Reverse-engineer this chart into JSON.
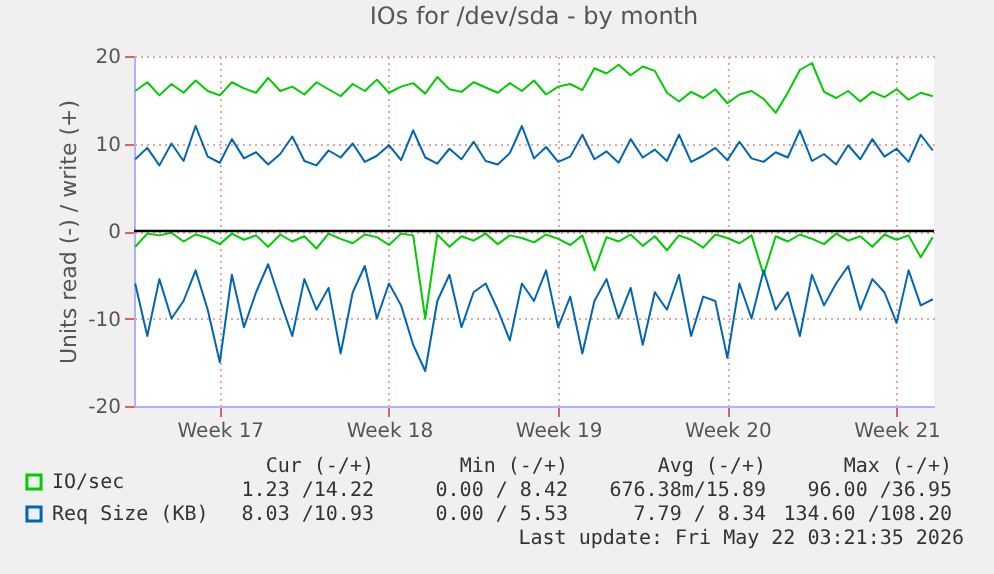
{
  "chart_data": {
    "type": "line",
    "title": "IOs for /dev/sda - by month",
    "ylabel": "Units read (-) / write (+)",
    "categories": [
      null,
      null,
      null,
      null,
      null,
      null,
      null,
      "Week 17",
      null,
      null,
      null,
      null,
      null,
      null,
      null,
      null,
      null,
      null,
      null,
      null,
      null,
      "Week 18",
      null,
      null,
      null,
      null,
      null,
      null,
      null,
      null,
      null,
      null,
      null,
      null,
      null,
      "Week 19",
      null,
      null,
      null,
      null,
      null,
      null,
      null,
      null,
      null,
      null,
      null,
      null,
      null,
      "Week 20",
      null,
      null,
      null,
      null,
      null,
      null,
      null,
      null,
      null,
      null,
      null,
      null,
      null,
      "Week 21",
      null,
      null,
      null
    ],
    "series": [
      {
        "name": "IO/sec",
        "color": "#00cc00",
        "values": [
          16,
          17,
          15.5,
          16.8,
          15.8,
          17.2,
          16,
          15.5,
          17,
          16.3,
          15.8,
          17.5,
          16,
          16.5,
          15.6,
          17,
          16.2,
          15.4,
          16.8,
          16,
          17.3,
          15.8,
          16.5,
          16.9,
          15.7,
          17.6,
          16.2,
          15.9,
          17,
          16.4,
          15.8,
          16.9,
          16,
          17.2,
          15.6,
          16.5,
          16.8,
          16.1,
          18.6,
          18,
          19,
          17.8,
          18.8,
          18.3,
          15.8,
          14.8,
          15.9,
          15.2,
          16.2,
          14.6,
          15.6,
          16,
          15.1,
          13.5,
          15.8,
          18.4,
          19.2,
          15.9,
          15.2,
          16,
          14.8,
          15.9,
          15.3,
          16.2,
          15,
          15.8,
          15.4
        ]
      },
      {
        "color": "#00cc00",
        "values": [
          -1.8,
          -0.3,
          -0.5,
          -0.2,
          -1.2,
          -0.4,
          -0.8,
          -1.5,
          -0.3,
          -1,
          -0.5,
          -1.8,
          -0.4,
          -1.2,
          -0.6,
          -2,
          -0.3,
          -0.9,
          -1.4,
          -0.4,
          -0.7,
          -1.6,
          -0.3,
          -0.5,
          -10,
          -0.4,
          -1.8,
          -0.6,
          -1.1,
          -0.3,
          -1.5,
          -0.5,
          -0.8,
          -1.3,
          -0.4,
          -0.9,
          -1.6,
          -0.5,
          -4.5,
          -0.7,
          -1.2,
          -0.4,
          -1.7,
          -0.6,
          -2.2,
          -0.5,
          -1,
          -1.9,
          -0.4,
          -0.8,
          -1.4,
          -0.5,
          -5,
          -0.6,
          -1.2,
          -0.4,
          -0.9,
          -1.5,
          -0.3,
          -1.1,
          -0.6,
          -1.8,
          -0.4,
          -1,
          -0.5,
          -3,
          -0.7
        ]
      },
      {
        "name": "Req Size (KB)",
        "color": "#0066b3",
        "values": [
          8.2,
          9.5,
          7.5,
          10,
          8,
          12,
          8.5,
          7.8,
          10.5,
          8.3,
          9,
          7.6,
          8.8,
          10.8,
          8,
          7.5,
          9.2,
          8.4,
          10,
          7.9,
          8.6,
          9.8,
          8.1,
          11.5,
          8.4,
          7.7,
          9.4,
          8.2,
          10.2,
          8,
          7.6,
          8.9,
          12,
          8.3,
          9.6,
          7.9,
          8.5,
          11,
          8.2,
          9.1,
          7.8,
          10.5,
          8.4,
          9.3,
          8,
          11,
          7.9,
          8.6,
          9.5,
          8.1,
          10.2,
          8.3,
          7.9,
          9,
          8.4,
          11.5,
          8,
          8.8,
          7.6,
          9.8,
          8.2,
          10.5,
          8.5,
          9.4,
          7.9,
          11,
          9.2
        ]
      },
      {
        "color": "#0066b3",
        "values": [
          -6,
          -12,
          -5.5,
          -10,
          -8,
          -4.5,
          -9,
          -15,
          -5,
          -11,
          -7,
          -3.8,
          -8,
          -12,
          -5.5,
          -9,
          -6.5,
          -14,
          -7,
          -4,
          -10,
          -6,
          -8.5,
          -13,
          -16,
          -8,
          -5,
          -11,
          -7,
          -6,
          -9,
          -12.5,
          -6,
          -8,
          -4.5,
          -11,
          -7.5,
          -14,
          -8,
          -5.5,
          -10,
          -6.5,
          -13,
          -7,
          -9,
          -5,
          -12,
          -7.5,
          -8,
          -14.5,
          -6,
          -10,
          -4.5,
          -9,
          -7,
          -12,
          -5,
          -8.5,
          -6,
          -4,
          -9,
          -5.5,
          -7,
          -10.5,
          -4.5,
          -8.5,
          -7.8
        ]
      }
    ],
    "ylim": [
      -20,
      20
    ],
    "yticks": [
      -20,
      -10,
      0,
      10,
      20
    ],
    "ref_lines": [
      {
        "axis": "y",
        "value": 0,
        "color": "#000000"
      }
    ],
    "grid": true,
    "legend": "bottom",
    "annotations": [
      "Cur (-/+)",
      "Min (-/+)",
      "Avg (-/+)",
      "Max (-/+)",
      "1.23 /14.22",
      "0.00 / 8.42",
      "676.38m/15.89",
      "96.00 /36.95",
      "8.03 /10.93",
      "0.00 / 5.53",
      "7.79 / 8.34",
      "134.60 /108.20",
      "Last update: Fri May 22 03:21:35 2026"
    ]
  }
}
